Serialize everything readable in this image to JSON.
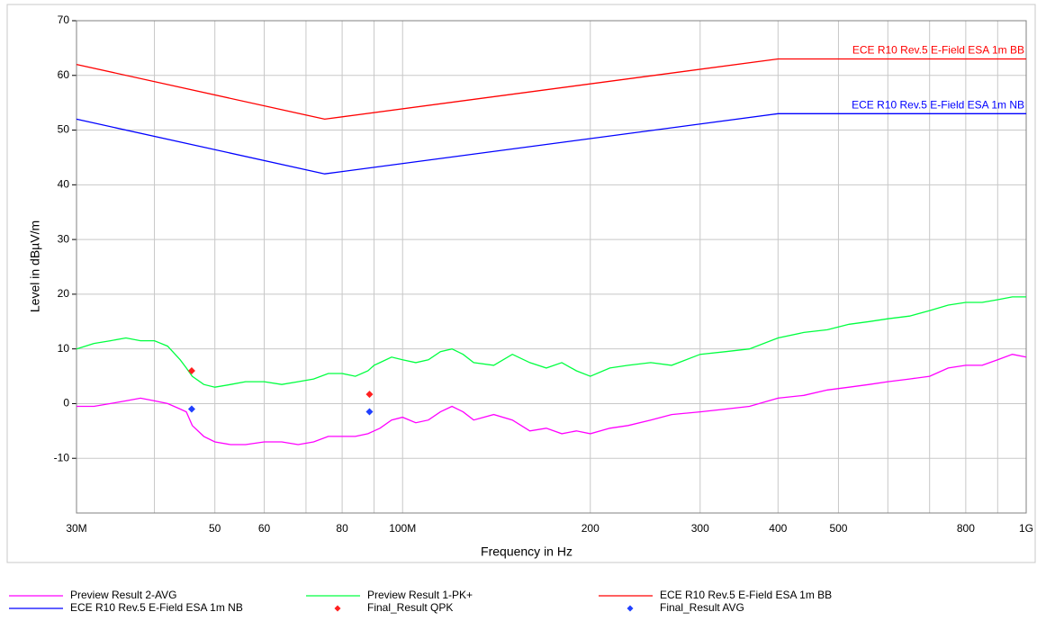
{
  "chart_data": {
    "type": "line",
    "x_label": "Frequency in Hz",
    "y_label": "Level in dBµV/m",
    "x_log": true,
    "grid": true,
    "xlim": [
      30000000,
      1000000000
    ],
    "ylim": [
      -20,
      70
    ],
    "xticks": [
      {
        "value": 30000000,
        "label": "30M"
      },
      {
        "value": 50000000,
        "label": "50"
      },
      {
        "value": 60000000,
        "label": "60"
      },
      {
        "value": 80000000,
        "label": "80"
      },
      {
        "value": 100000000,
        "label": "100M"
      },
      {
        "value": 200000000,
        "label": "200"
      },
      {
        "value": 300000000,
        "label": "300"
      },
      {
        "value": 400000000,
        "label": "400"
      },
      {
        "value": 500000000,
        "label": "500"
      },
      {
        "value": 800000000,
        "label": "800"
      },
      {
        "value": 1000000000,
        "label": "1G"
      }
    ],
    "xgrid": [
      40000000,
      70000000,
      90000000,
      600000000,
      700000000,
      900000000
    ],
    "yticks": [
      -10,
      0,
      10,
      20,
      30,
      40,
      50,
      60,
      70
    ],
    "series": [
      {
        "name": "Preview Result 2-AVG",
        "color": "#ff00ff",
        "style": "line",
        "x": [
          30000000,
          32000000,
          34000000,
          36000000,
          38000000,
          40000000,
          42000000,
          44000000,
          45000000,
          46000000,
          48000000,
          50000000,
          53000000,
          56000000,
          60000000,
          64000000,
          68000000,
          72000000,
          76000000,
          80000000,
          84000000,
          88000000,
          90000000,
          92000000,
          96000000,
          100000000,
          105000000,
          110000000,
          115000000,
          120000000,
          125000000,
          130000000,
          140000000,
          150000000,
          160000000,
          170000000,
          180000000,
          190000000,
          200000000,
          215000000,
          230000000,
          250000000,
          270000000,
          300000000,
          330000000,
          360000000,
          400000000,
          440000000,
          480000000,
          520000000,
          560000000,
          600000000,
          650000000,
          700000000,
          750000000,
          800000000,
          850000000,
          900000000,
          950000000,
          1000000000
        ],
        "values": [
          -0.5,
          -0.5,
          0,
          0.5,
          1,
          0.5,
          0,
          -1,
          -1.5,
          -4,
          -6,
          -7,
          -7.5,
          -7.5,
          -7,
          -7,
          -7.5,
          -7,
          -6,
          -6,
          -6,
          -5.5,
          -5,
          -4.5,
          -3,
          -2.5,
          -3.5,
          -3,
          -1.5,
          -0.5,
          -1.5,
          -3,
          -2,
          -3,
          -5,
          -4.5,
          -5.5,
          -5,
          -5.5,
          -4.5,
          -4,
          -3,
          -2,
          -1.5,
          -1,
          -0.5,
          1,
          1.5,
          2.5,
          3,
          3.5,
          4,
          4.5,
          5,
          6.5,
          7,
          7,
          8,
          9,
          8.5
        ]
      },
      {
        "name": "Preview Result 1-PK+",
        "color": "#00ff40",
        "style": "line",
        "x": [
          30000000,
          32000000,
          34000000,
          36000000,
          38000000,
          40000000,
          42000000,
          44000000,
          45000000,
          46000000,
          48000000,
          50000000,
          53000000,
          56000000,
          60000000,
          64000000,
          68000000,
          72000000,
          76000000,
          80000000,
          84000000,
          88000000,
          90000000,
          92000000,
          96000000,
          100000000,
          105000000,
          110000000,
          115000000,
          120000000,
          125000000,
          130000000,
          140000000,
          150000000,
          160000000,
          170000000,
          180000000,
          190000000,
          200000000,
          215000000,
          230000000,
          250000000,
          270000000,
          300000000,
          330000000,
          360000000,
          400000000,
          440000000,
          480000000,
          520000000,
          560000000,
          600000000,
          650000000,
          700000000,
          750000000,
          800000000,
          850000000,
          900000000,
          950000000,
          1000000000
        ],
        "values": [
          10,
          11,
          11.5,
          12,
          11.5,
          11.5,
          10.5,
          8,
          6.5,
          5,
          3.5,
          3,
          3.5,
          4,
          4,
          3.5,
          4,
          4.5,
          5.5,
          5.5,
          5,
          6,
          7,
          7.5,
          8.5,
          8,
          7.5,
          8,
          9.5,
          10,
          9,
          7.5,
          7,
          9,
          7.5,
          6.5,
          7.5,
          6,
          5,
          6.5,
          7,
          7.5,
          7,
          9,
          9.5,
          10,
          12,
          13,
          13.5,
          14.5,
          15,
          15.5,
          16,
          17,
          18,
          18.5,
          18.5,
          19,
          19.5,
          19.5
        ]
      },
      {
        "name": "ECE R10 Rev.5 E-Field ESA 1m BB",
        "color": "#ff0000",
        "style": "line",
        "limit": true,
        "x": [
          30000000,
          75000000,
          400000000,
          1000000000
        ],
        "values": [
          62,
          52,
          63,
          63
        ]
      },
      {
        "name": "ECE R10 Rev.5 E-Field ESA 1m NB",
        "color": "#0000ff",
        "style": "line",
        "limit": true,
        "x": [
          30000000,
          75000000,
          400000000,
          1000000000
        ],
        "values": [
          52,
          42,
          53,
          53
        ]
      },
      {
        "name": "Final_Result QPK",
        "color": "#ff2020",
        "style": "diamond",
        "x": [
          45900000,
          88500000
        ],
        "values": [
          6,
          1.7
        ]
      },
      {
        "name": "Final_Result AVG",
        "color": "#2040ff",
        "style": "diamond",
        "x": [
          45900000,
          88500000
        ],
        "values": [
          -1,
          -1.5
        ]
      }
    ]
  }
}
